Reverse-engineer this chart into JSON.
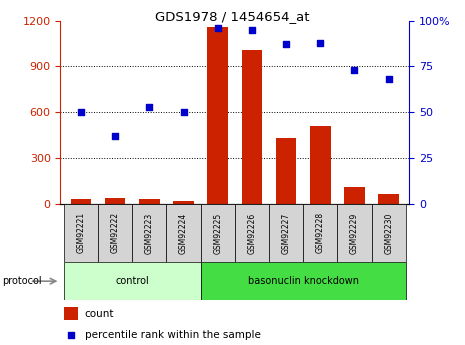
{
  "title": "GDS1978 / 1454654_at",
  "samples": [
    "GSM92221",
    "GSM92222",
    "GSM92223",
    "GSM92224",
    "GSM92225",
    "GSM92226",
    "GSM92227",
    "GSM92228",
    "GSM92229",
    "GSM92230"
  ],
  "bar_values": [
    30,
    35,
    30,
    15,
    1160,
    1010,
    430,
    510,
    110,
    60
  ],
  "percentile_values": [
    50,
    37,
    53,
    50,
    96,
    95,
    87,
    88,
    73,
    68
  ],
  "left_ylim": [
    0,
    1200
  ],
  "right_ylim": [
    0,
    100
  ],
  "left_yticks": [
    0,
    300,
    600,
    900,
    1200
  ],
  "right_yticks": [
    0,
    25,
    50,
    75,
    100
  ],
  "right_yticklabels": [
    "0",
    "25",
    "50",
    "75",
    "100%"
  ],
  "bar_color": "#cc2200",
  "dot_color": "#0000cc",
  "bg_color": "#ffffff",
  "protocol_groups": [
    {
      "label": "control",
      "start": 0,
      "end": 3,
      "color": "#ccffcc"
    },
    {
      "label": "basonuclin knockdown",
      "start": 4,
      "end": 9,
      "color": "#44dd44"
    }
  ],
  "protocol_label": "protocol",
  "legend_count_label": "count",
  "legend_percentile_label": "percentile rank within the sample",
  "tick_label_color_left": "#cc2200",
  "tick_label_color_right": "#0000cc",
  "sample_box_color": "#d4d4d4",
  "grid_yticks": [
    300,
    600,
    900
  ]
}
